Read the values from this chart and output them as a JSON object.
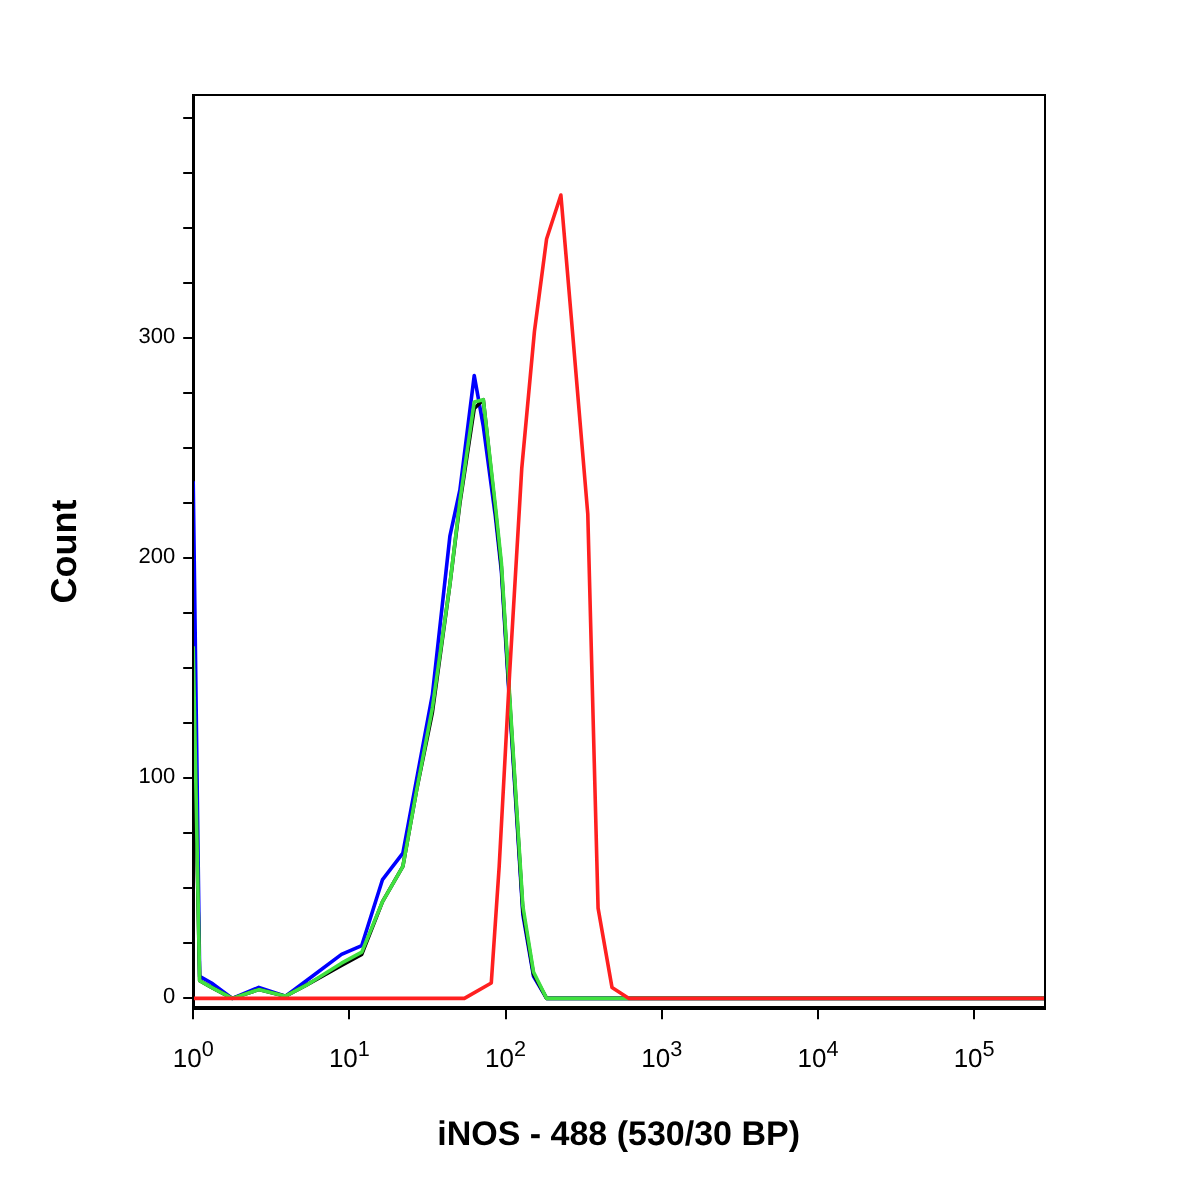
{
  "chart_data": {
    "type": "line",
    "xlabel": "iNOS - 488 (530/30 BP)",
    "ylabel": "Count",
    "log": "x",
    "grid": false,
    "legend": false,
    "marker": "none",
    "line_style": "solid",
    "xlim": [
      1,
      280000
    ],
    "ylim": [
      -4,
      410
    ],
    "xticks": [
      {
        "value": 1,
        "label": "10$^{0}$"
      },
      {
        "value": 10,
        "label": "10$^{1}$"
      },
      {
        "value": 100,
        "label": "10$^{2}$"
      },
      {
        "value": 1000,
        "label": "10$^{3}$"
      },
      {
        "value": 10000,
        "label": "10$^{4}$"
      },
      {
        "value": 100000,
        "label": "10$^{5}$"
      }
    ],
    "yticks": [
      0,
      {
        "value": 25,
        "label": null
      },
      {
        "value": 50,
        "label": null
      },
      {
        "value": 75,
        "label": null
      },
      100,
      {
        "value": 125,
        "label": null
      },
      {
        "value": 150,
        "label": null
      },
      {
        "value": 175,
        "label": null
      },
      200,
      {
        "value": 225,
        "label": null
      },
      {
        "value": 250,
        "label": null
      },
      {
        "value": 275,
        "label": null
      },
      300,
      {
        "value": 325,
        "label": null
      },
      {
        "value": 350,
        "label": null
      },
      {
        "value": 375,
        "label": null
      },
      {
        "value": 400,
        "label": null
      }
    ],
    "series": [
      {
        "color": "#0000ff",
        "x": [
          1,
          1.1,
          1.31,
          1.78,
          2.63,
          3.9,
          5.3,
          8.9,
          12,
          16.3,
          22,
          27,
          34,
          44,
          51,
          63,
          72,
          86,
          94,
          110,
          129,
          151,
          183,
          1000,
          280000
        ],
        "values": [
          235,
          10,
          7,
          0,
          5,
          1,
          8,
          20,
          24,
          54,
          66,
          100,
          138,
          210,
          231,
          283,
          260,
          219,
          194,
          116,
          38,
          10,
          0,
          0,
          0
        ]
      },
      {
        "color": "#000000",
        "x": [
          1,
          1.1,
          1.31,
          1.78,
          2.63,
          3.9,
          5.3,
          8.9,
          12,
          16.3,
          22,
          27,
          34,
          44,
          51,
          63,
          72,
          86,
          94,
          110,
          129,
          151,
          183,
          1000,
          280000
        ],
        "values": [
          150,
          8,
          5,
          0,
          4,
          1,
          6,
          15,
          20,
          44,
          60,
          95,
          130,
          188,
          225,
          268,
          272,
          222,
          196,
          118,
          40,
          11,
          0,
          0,
          0
        ]
      },
      {
        "color": "#40e040",
        "x": [
          1,
          1.1,
          1.31,
          1.78,
          2.63,
          3.9,
          5.3,
          8.9,
          12,
          16.3,
          22,
          27,
          34,
          44,
          51,
          63,
          72,
          86,
          94,
          110,
          129,
          151,
          183,
          1000,
          280000
        ],
        "values": [
          160,
          8,
          5,
          0,
          4,
          1,
          6,
          16,
          21,
          44,
          60,
          95,
          132,
          188,
          226,
          271,
          272,
          224,
          198,
          120,
          42,
          12,
          0,
          0,
          0
        ]
      },
      {
        "color": "#ff2020",
        "x": [
          1,
          54.5,
          81,
          91,
          106,
          127,
          153,
          183,
          226,
          263,
          336,
          391,
          480,
          617,
          1000,
          280000
        ],
        "values": [
          0,
          0,
          7,
          60,
          147,
          241,
          303,
          345,
          365,
          310,
          220,
          41,
          5,
          0,
          0,
          0
        ]
      }
    ]
  }
}
